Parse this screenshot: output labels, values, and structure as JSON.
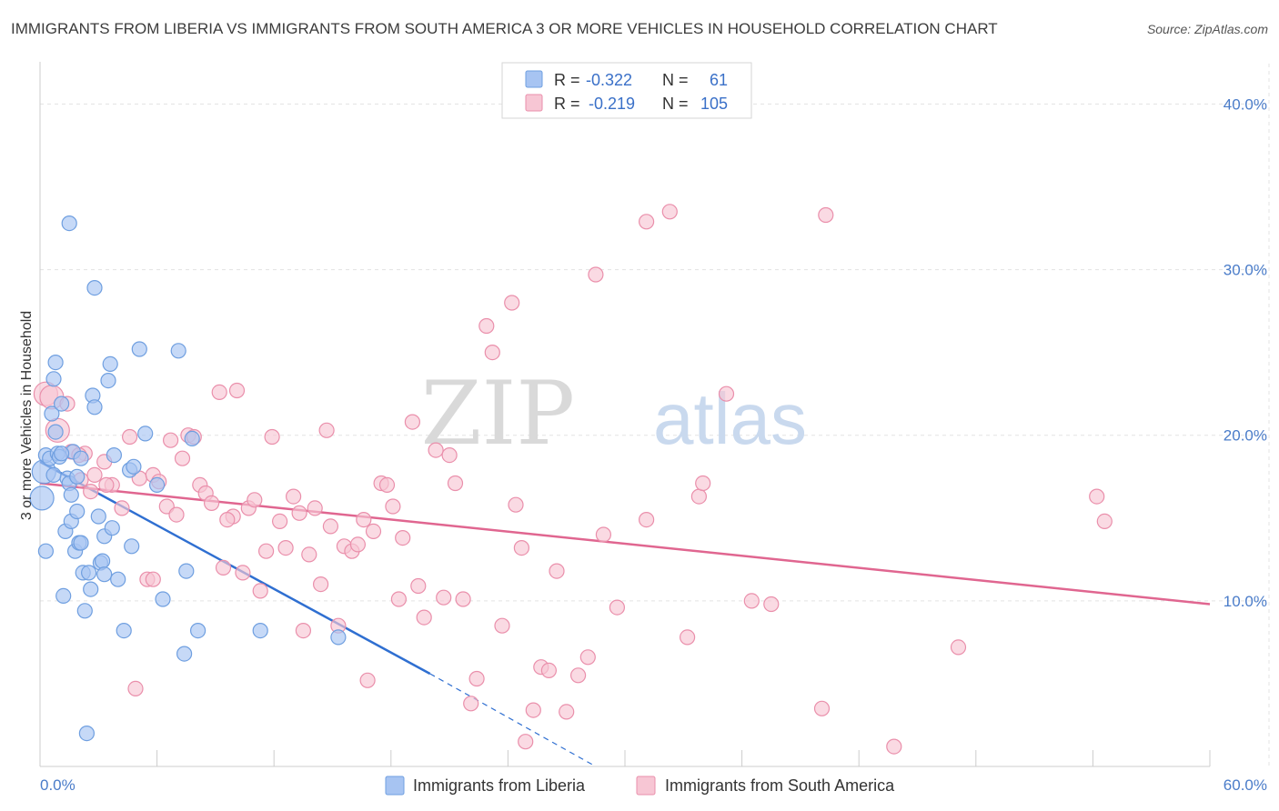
{
  "header": {
    "title": "IMMIGRANTS FROM LIBERIA VS IMMIGRANTS FROM SOUTH AMERICA 3 OR MORE VEHICLES IN HOUSEHOLD CORRELATION CHART",
    "source": "Source: ZipAtlas.com"
  },
  "watermark": {
    "zip": "ZIP",
    "atlas": "atlas"
  },
  "stats_legend": {
    "rows": [
      {
        "r_label": "R = ",
        "r_value": "-0.322",
        "n_label": "N = ",
        "n_value": "61",
        "color": "#a7c4f2"
      },
      {
        "r_label": "R = ",
        "r_value": "-0.219",
        "n_label": "N = ",
        "n_value": "105",
        "color": "#f4b6c8"
      }
    ]
  },
  "colors": {
    "liberia_fill": "#a7c4f2",
    "liberia_stroke": "#6f9fe0",
    "liberia_line": "#2f6fd1",
    "sa_fill": "#f7c6d4",
    "sa_stroke": "#ea8fab",
    "sa_line": "#e06690",
    "grid": "#e3e3e3",
    "tick_text": "#4a7cc9"
  },
  "chart_data": {
    "type": "scatter",
    "title": "IMMIGRANTS FROM LIBERIA VS IMMIGRANTS FROM SOUTH AMERICA 3 OR MORE VEHICLES IN HOUSEHOLD CORRELATION CHART",
    "ylabel": "3 or more Vehicles in Household",
    "xlabel": "",
    "xlim": [
      0,
      60
    ],
    "ylim": [
      0,
      42
    ],
    "x_tick_labels": [
      {
        "value": 0,
        "label": "0.0%"
      },
      {
        "value": 60,
        "label": "60.0%"
      }
    ],
    "y_tick_labels": [
      {
        "value": 10,
        "label": "10.0%"
      },
      {
        "value": 20,
        "label": "20.0%"
      },
      {
        "value": 30,
        "label": "30.0%"
      },
      {
        "value": 40,
        "label": "40.0%"
      }
    ],
    "grid": true,
    "legend_position": "bottom",
    "series": [
      {
        "name": "Immigrants from Liberia",
        "r": -0.322,
        "n": 61,
        "trend": {
          "x": [
            0,
            20
          ],
          "y": [
            18.4,
            5.6
          ],
          "dashed_to": [
            28.5,
            0
          ]
        },
        "points": [
          [
            0.1,
            16.2
          ],
          [
            0.2,
            17.8
          ],
          [
            0.3,
            18.8
          ],
          [
            0.3,
            13.0
          ],
          [
            0.5,
            18.6
          ],
          [
            0.6,
            21.3
          ],
          [
            0.7,
            23.4
          ],
          [
            0.8,
            20.2
          ],
          [
            0.8,
            24.4
          ],
          [
            0.9,
            18.9
          ],
          [
            1.0,
            18.7
          ],
          [
            1.1,
            21.9
          ],
          [
            1.2,
            10.3
          ],
          [
            1.3,
            14.2
          ],
          [
            1.4,
            17.4
          ],
          [
            1.5,
            17.1
          ],
          [
            1.5,
            32.8
          ],
          [
            1.6,
            14.8
          ],
          [
            1.6,
            16.4
          ],
          [
            1.7,
            19.0
          ],
          [
            1.8,
            13.0
          ],
          [
            1.9,
            15.4
          ],
          [
            2.0,
            13.5
          ],
          [
            2.1,
            13.5
          ],
          [
            2.2,
            11.7
          ],
          [
            2.3,
            9.4
          ],
          [
            2.4,
            2.0
          ],
          [
            2.5,
            11.7
          ],
          [
            2.6,
            10.7
          ],
          [
            2.7,
            22.4
          ],
          [
            2.8,
            28.9
          ],
          [
            2.8,
            21.7
          ],
          [
            3.0,
            15.1
          ],
          [
            3.1,
            12.3
          ],
          [
            3.2,
            12.4
          ],
          [
            3.3,
            13.9
          ],
          [
            3.3,
            11.6
          ],
          [
            3.5,
            23.3
          ],
          [
            3.6,
            24.3
          ],
          [
            3.7,
            14.4
          ],
          [
            4.0,
            11.3
          ],
          [
            4.3,
            8.2
          ],
          [
            4.6,
            17.9
          ],
          [
            4.7,
            13.3
          ],
          [
            4.8,
            18.1
          ],
          [
            5.1,
            25.2
          ],
          [
            5.4,
            20.1
          ],
          [
            6.0,
            17.0
          ],
          [
            6.3,
            10.1
          ],
          [
            7.1,
            25.1
          ],
          [
            7.4,
            6.8
          ],
          [
            7.5,
            11.8
          ],
          [
            7.8,
            19.8
          ],
          [
            8.1,
            8.2
          ],
          [
            11.3,
            8.2
          ],
          [
            15.3,
            7.8
          ],
          [
            3.8,
            18.8
          ],
          [
            2.1,
            18.6
          ],
          [
            1.1,
            18.9
          ],
          [
            0.7,
            17.6
          ],
          [
            1.9,
            17.5
          ]
        ]
      },
      {
        "name": "Immigrants from South America",
        "r": -0.219,
        "n": 105,
        "trend": {
          "x": [
            0,
            60
          ],
          "y": [
            17.1,
            9.8
          ]
        },
        "points": [
          [
            0.3,
            22.5
          ],
          [
            0.6,
            22.3
          ],
          [
            0.9,
            20.3
          ],
          [
            1.6,
            19.0
          ],
          [
            2.1,
            17.3
          ],
          [
            2.3,
            18.9
          ],
          [
            2.6,
            16.6
          ],
          [
            2.8,
            17.6
          ],
          [
            3.3,
            18.4
          ],
          [
            3.7,
            17.0
          ],
          [
            4.2,
            15.6
          ],
          [
            4.6,
            19.9
          ],
          [
            4.9,
            4.7
          ],
          [
            5.1,
            17.4
          ],
          [
            5.5,
            11.3
          ],
          [
            5.8,
            17.6
          ],
          [
            6.1,
            17.2
          ],
          [
            6.5,
            15.7
          ],
          [
            6.7,
            19.7
          ],
          [
            7.0,
            15.2
          ],
          [
            7.3,
            18.6
          ],
          [
            7.6,
            20.0
          ],
          [
            7.9,
            19.9
          ],
          [
            8.2,
            17.0
          ],
          [
            8.5,
            16.5
          ],
          [
            8.8,
            15.9
          ],
          [
            9.2,
            22.6
          ],
          [
            9.4,
            12.0
          ],
          [
            9.9,
            15.1
          ],
          [
            10.1,
            22.7
          ],
          [
            10.4,
            11.7
          ],
          [
            10.7,
            15.6
          ],
          [
            11.0,
            16.1
          ],
          [
            11.3,
            10.6
          ],
          [
            11.6,
            13.0
          ],
          [
            11.9,
            19.9
          ],
          [
            12.3,
            14.8
          ],
          [
            12.6,
            13.2
          ],
          [
            13.0,
            16.3
          ],
          [
            13.3,
            15.3
          ],
          [
            13.5,
            8.2
          ],
          [
            13.8,
            12.8
          ],
          [
            14.1,
            15.6
          ],
          [
            14.4,
            11.0
          ],
          [
            14.7,
            20.3
          ],
          [
            14.9,
            14.5
          ],
          [
            15.3,
            8.5
          ],
          [
            15.6,
            13.3
          ],
          [
            16.0,
            13.0
          ],
          [
            16.3,
            13.4
          ],
          [
            16.6,
            14.9
          ],
          [
            16.8,
            5.2
          ],
          [
            17.1,
            14.2
          ],
          [
            17.5,
            17.1
          ],
          [
            17.8,
            17.0
          ],
          [
            18.1,
            15.7
          ],
          [
            18.4,
            10.1
          ],
          [
            18.6,
            13.8
          ],
          [
            19.1,
            20.8
          ],
          [
            19.4,
            10.9
          ],
          [
            19.7,
            9.0
          ],
          [
            20.3,
            19.1
          ],
          [
            20.7,
            10.2
          ],
          [
            21.0,
            18.8
          ],
          [
            21.3,
            17.1
          ],
          [
            21.7,
            10.1
          ],
          [
            22.1,
            3.8
          ],
          [
            22.4,
            5.3
          ],
          [
            22.9,
            26.6
          ],
          [
            23.2,
            25.0
          ],
          [
            23.7,
            8.5
          ],
          [
            24.2,
            28.0
          ],
          [
            24.4,
            15.8
          ],
          [
            24.7,
            13.2
          ],
          [
            24.9,
            1.5
          ],
          [
            25.3,
            3.4
          ],
          [
            25.7,
            6.0
          ],
          [
            26.1,
            5.8
          ],
          [
            26.5,
            11.8
          ],
          [
            27.0,
            3.3
          ],
          [
            27.6,
            5.5
          ],
          [
            28.1,
            6.6
          ],
          [
            28.5,
            29.7
          ],
          [
            28.9,
            14.0
          ],
          [
            29.6,
            9.6
          ],
          [
            31.1,
            14.9
          ],
          [
            33.2,
            7.8
          ],
          [
            33.8,
            16.3
          ],
          [
            34.0,
            17.1
          ],
          [
            35.2,
            22.5
          ],
          [
            36.5,
            10.0
          ],
          [
            37.5,
            9.8
          ],
          [
            40.1,
            3.5
          ],
          [
            40.3,
            33.3
          ],
          [
            43.8,
            1.2
          ],
          [
            47.1,
            7.2
          ],
          [
            54.2,
            16.3
          ],
          [
            54.6,
            14.8
          ],
          [
            31.1,
            32.9
          ],
          [
            32.3,
            33.5
          ],
          [
            1.4,
            21.9
          ],
          [
            2.0,
            18.8
          ],
          [
            3.4,
            17.0
          ],
          [
            5.8,
            11.3
          ],
          [
            9.6,
            14.9
          ]
        ]
      }
    ]
  },
  "bottom_legend": {
    "items": [
      {
        "label": "Immigrants from Liberia"
      },
      {
        "label": "Immigrants from South America"
      }
    ]
  }
}
